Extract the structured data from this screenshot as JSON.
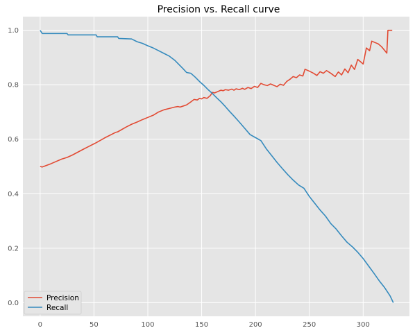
{
  "chart_data": {
    "type": "line",
    "title": "Precision vs. Recall curve",
    "xlabel": "",
    "ylabel": "",
    "xlim": [
      -16,
      343
    ],
    "ylim": [
      -0.05,
      1.05
    ],
    "x_ticks": [
      0,
      50,
      100,
      150,
      200,
      250,
      300
    ],
    "y_ticks": [
      0.0,
      0.2,
      0.4,
      0.6,
      0.8,
      1.0
    ],
    "x_tick_labels": [
      "0",
      "50",
      "100",
      "150",
      "200",
      "250",
      "300"
    ],
    "y_tick_labels": [
      "0.0",
      "0.2",
      "0.4",
      "0.6",
      "0.8",
      "1.0"
    ],
    "grid": true,
    "legend_position": "lower-left",
    "series": [
      {
        "name": "Precision",
        "color": "#e24a33",
        "points": [
          [
            0,
            0.5
          ],
          [
            2,
            0.498
          ],
          [
            10,
            0.51
          ],
          [
            20,
            0.527
          ],
          [
            25,
            0.533
          ],
          [
            30,
            0.542
          ],
          [
            40,
            0.563
          ],
          [
            50,
            0.583
          ],
          [
            52,
            0.587
          ],
          [
            60,
            0.605
          ],
          [
            70,
            0.625
          ],
          [
            72,
            0.627
          ],
          [
            80,
            0.645
          ],
          [
            85,
            0.655
          ],
          [
            90,
            0.663
          ],
          [
            95,
            0.672
          ],
          [
            100,
            0.68
          ],
          [
            105,
            0.688
          ],
          [
            110,
            0.7
          ],
          [
            115,
            0.708
          ],
          [
            120,
            0.713
          ],
          [
            125,
            0.718
          ],
          [
            128,
            0.72
          ],
          [
            130,
            0.718
          ],
          [
            133,
            0.722
          ],
          [
            136,
            0.726
          ],
          [
            140,
            0.737
          ],
          [
            143,
            0.746
          ],
          [
            146,
            0.744
          ],
          [
            148,
            0.75
          ],
          [
            150,
            0.748
          ],
          [
            152,
            0.753
          ],
          [
            155,
            0.75
          ],
          [
            158,
            0.76
          ],
          [
            160,
            0.772
          ],
          [
            162,
            0.77
          ],
          [
            165,
            0.775
          ],
          [
            168,
            0.78
          ],
          [
            170,
            0.778
          ],
          [
            172,
            0.782
          ],
          [
            175,
            0.78
          ],
          [
            178,
            0.784
          ],
          [
            180,
            0.78
          ],
          [
            182,
            0.785
          ],
          [
            185,
            0.782
          ],
          [
            188,
            0.787
          ],
          [
            190,
            0.783
          ],
          [
            193,
            0.79
          ],
          [
            196,
            0.786
          ],
          [
            199,
            0.794
          ],
          [
            202,
            0.79
          ],
          [
            205,
            0.805
          ],
          [
            208,
            0.8
          ],
          [
            211,
            0.797
          ],
          [
            214,
            0.803
          ],
          [
            217,
            0.798
          ],
          [
            220,
            0.793
          ],
          [
            223,
            0.802
          ],
          [
            226,
            0.798
          ],
          [
            229,
            0.812
          ],
          [
            232,
            0.82
          ],
          [
            235,
            0.83
          ],
          [
            238,
            0.826
          ],
          [
            241,
            0.836
          ],
          [
            244,
            0.832
          ],
          [
            246,
            0.857
          ],
          [
            250,
            0.85
          ],
          [
            254,
            0.842
          ],
          [
            257,
            0.834
          ],
          [
            260,
            0.848
          ],
          [
            263,
            0.842
          ],
          [
            266,
            0.852
          ],
          [
            270,
            0.842
          ],
          [
            274,
            0.83
          ],
          [
            277,
            0.847
          ],
          [
            280,
            0.836
          ],
          [
            283,
            0.858
          ],
          [
            286,
            0.844
          ],
          [
            289,
            0.872
          ],
          [
            292,
            0.856
          ],
          [
            295,
            0.893
          ],
          [
            298,
            0.883
          ],
          [
            300,
            0.876
          ],
          [
            303,
            0.935
          ],
          [
            306,
            0.925
          ],
          [
            308,
            0.96
          ],
          [
            311,
            0.955
          ],
          [
            314,
            0.95
          ],
          [
            317,
            0.94
          ],
          [
            320,
            0.926
          ],
          [
            322,
            0.916
          ],
          [
            323,
            1.0
          ],
          [
            327,
            1.0
          ]
        ]
      },
      {
        "name": "Recall",
        "color": "#348abd",
        "points": [
          [
            0,
            1.0
          ],
          [
            2,
            0.988
          ],
          [
            25,
            0.988
          ],
          [
            26,
            0.983
          ],
          [
            52,
            0.983
          ],
          [
            53,
            0.976
          ],
          [
            72,
            0.976
          ],
          [
            73,
            0.97
          ],
          [
            85,
            0.968
          ],
          [
            90,
            0.958
          ],
          [
            95,
            0.952
          ],
          [
            100,
            0.943
          ],
          [
            105,
            0.935
          ],
          [
            110,
            0.925
          ],
          [
            115,
            0.915
          ],
          [
            120,
            0.905
          ],
          [
            125,
            0.89
          ],
          [
            130,
            0.87
          ],
          [
            133,
            0.858
          ],
          [
            136,
            0.845
          ],
          [
            140,
            0.842
          ],
          [
            144,
            0.828
          ],
          [
            148,
            0.812
          ],
          [
            152,
            0.798
          ],
          [
            156,
            0.782
          ],
          [
            160,
            0.768
          ],
          [
            164,
            0.752
          ],
          [
            168,
            0.737
          ],
          [
            172,
            0.72
          ],
          [
            176,
            0.702
          ],
          [
            180,
            0.685
          ],
          [
            185,
            0.663
          ],
          [
            190,
            0.64
          ],
          [
            195,
            0.617
          ],
          [
            200,
            0.606
          ],
          [
            205,
            0.595
          ],
          [
            210,
            0.565
          ],
          [
            215,
            0.54
          ],
          [
            220,
            0.515
          ],
          [
            225,
            0.492
          ],
          [
            230,
            0.47
          ],
          [
            235,
            0.45
          ],
          [
            240,
            0.432
          ],
          [
            245,
            0.42
          ],
          [
            250,
            0.39
          ],
          [
            255,
            0.365
          ],
          [
            260,
            0.34
          ],
          [
            265,
            0.318
          ],
          [
            270,
            0.29
          ],
          [
            275,
            0.27
          ],
          [
            280,
            0.245
          ],
          [
            285,
            0.222
          ],
          [
            290,
            0.205
          ],
          [
            295,
            0.185
          ],
          [
            300,
            0.162
          ],
          [
            305,
            0.135
          ],
          [
            310,
            0.108
          ],
          [
            315,
            0.08
          ],
          [
            320,
            0.055
          ],
          [
            325,
            0.025
          ],
          [
            328,
            0.0
          ]
        ]
      }
    ]
  }
}
